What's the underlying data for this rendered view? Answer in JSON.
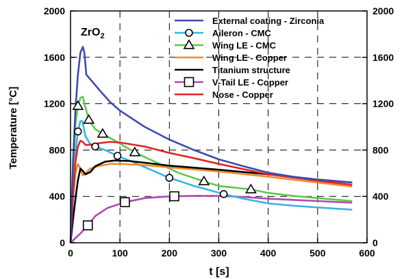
{
  "chart_data": {
    "type": "line",
    "annotation": {
      "main": "ZrO",
      "sub": "2"
    },
    "xlabel": "t [s]",
    "ylabel": "Temperature [°C]",
    "xlim": [
      0,
      600
    ],
    "ylim": [
      0,
      2000
    ],
    "xticks": [
      0,
      100,
      200,
      300,
      400,
      500,
      600
    ],
    "yticks": [
      0,
      400,
      800,
      1200,
      1600,
      2000
    ],
    "grid": "dashed",
    "legend_position": "top-right",
    "series": [
      {
        "name": "External coating - Zirconia",
        "color": "#3b4bb0",
        "marker": "none",
        "x": [
          0,
          5,
          10,
          15,
          20,
          25,
          28,
          32,
          40,
          60,
          80,
          100,
          150,
          200,
          250,
          300,
          350,
          400,
          450,
          500,
          570
        ],
        "y": [
          0,
          700,
          1150,
          1450,
          1640,
          1690,
          1640,
          1450,
          1410,
          1310,
          1215,
          1140,
          1000,
          890,
          800,
          720,
          660,
          605,
          570,
          545,
          520
        ]
      },
      {
        "name": "Aileron - CMC",
        "color": "#35b6e2",
        "marker": "circle",
        "marker_x": [
          15,
          50,
          95,
          200,
          310
        ],
        "x": [
          0,
          5,
          10,
          15,
          20,
          24,
          30,
          40,
          50,
          70,
          95,
          130,
          200,
          250,
          310,
          350,
          400,
          450,
          500,
          570
        ],
        "y": [
          0,
          450,
          780,
          960,
          1050,
          1050,
          920,
          850,
          830,
          800,
          750,
          690,
          560,
          490,
          420,
          380,
          340,
          320,
          305,
          285
        ]
      },
      {
        "name": "Wing LE - CMC",
        "color": "#5cc84a",
        "marker": "triangle",
        "marker_x": [
          15,
          37,
          65,
          130,
          270,
          365
        ],
        "x": [
          0,
          5,
          10,
          15,
          20,
          25,
          30,
          37,
          50,
          65,
          90,
          130,
          180,
          220,
          270,
          300,
          365,
          400,
          450,
          500,
          570
        ],
        "y": [
          0,
          600,
          1030,
          1180,
          1250,
          1260,
          1170,
          1060,
          980,
          940,
          880,
          780,
          680,
          600,
          530,
          490,
          460,
          430,
          405,
          385,
          360
        ]
      },
      {
        "name": "Wing LE - Copper",
        "color": "#f08a2c",
        "marker": "none",
        "x": [
          0,
          5,
          10,
          15,
          20,
          25,
          30,
          40,
          60,
          80,
          100,
          150,
          200,
          300,
          400,
          500,
          570
        ],
        "y": [
          0,
          380,
          600,
          680,
          640,
          580,
          600,
          640,
          665,
          680,
          680,
          670,
          650,
          615,
          570,
          520,
          485
        ]
      },
      {
        "name": "Titanium structure",
        "color": "#000000",
        "marker": "none",
        "x": [
          0,
          5,
          10,
          15,
          20,
          25,
          30,
          40,
          50,
          70,
          90,
          120,
          150,
          200,
          300,
          400,
          500,
          570
        ],
        "y": [
          0,
          200,
          380,
          540,
          640,
          620,
          590,
          610,
          660,
          700,
          710,
          705,
          690,
          665,
          630,
          590,
          545,
          520
        ]
      },
      {
        "name": "V-Tail LE - Copper",
        "color": "#b346b3",
        "marker": "square",
        "marker_x": [
          35,
          110,
          210
        ],
        "x": [
          0,
          10,
          20,
          35,
          50,
          75,
          110,
          150,
          200,
          250,
          300,
          350,
          400,
          450,
          500,
          570
        ],
        "y": [
          0,
          40,
          80,
          150,
          230,
          300,
          350,
          385,
          400,
          405,
          405,
          395,
          380,
          370,
          360,
          345
        ]
      },
      {
        "name": "Nose - Copper",
        "color": "#e02424",
        "marker": "none",
        "x": [
          0,
          5,
          10,
          15,
          20,
          25,
          30,
          40,
          60,
          80,
          100,
          150,
          200,
          250,
          300,
          400,
          500,
          570
        ],
        "y": [
          0,
          400,
          700,
          830,
          880,
          870,
          845,
          845,
          860,
          870,
          865,
          830,
          775,
          730,
          680,
          590,
          535,
          500
        ]
      }
    ]
  }
}
